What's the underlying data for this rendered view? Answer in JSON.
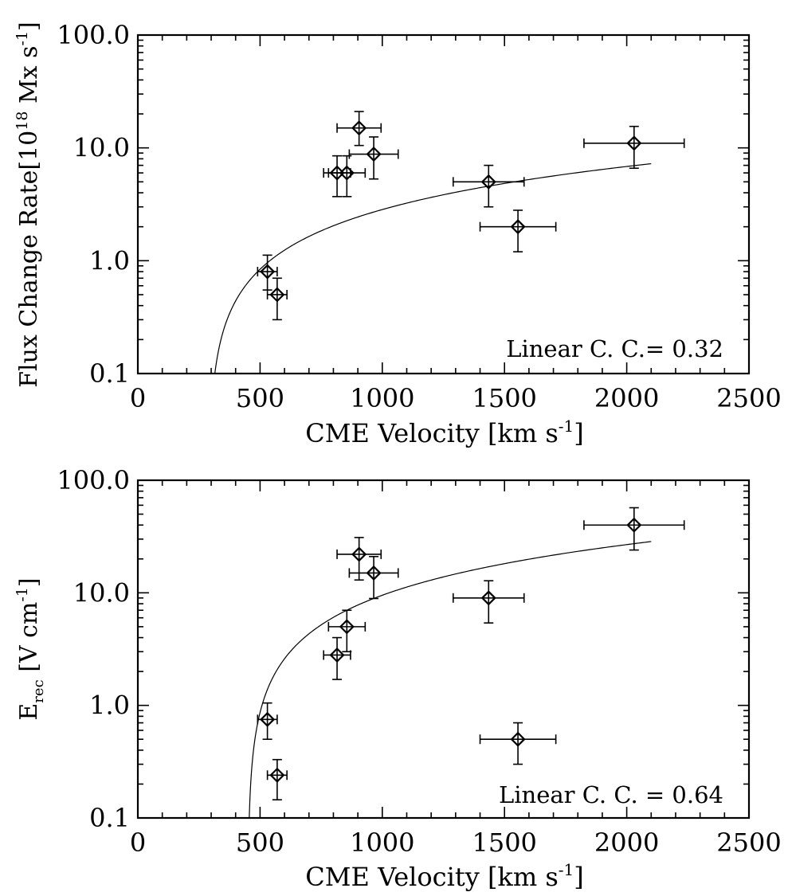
{
  "chart_data": [
    {
      "type": "scatter",
      "xlabel": "CME Velocity [km s",
      "xlabel_sup": "-1",
      "xlabel_end": "]",
      "ylabel": "Flux Change Rate[10",
      "ylabel_sup": "18",
      "ylabel_mid": " Mx s",
      "ylabel_sup2": "-1",
      "ylabel_end": "]",
      "xlim": [
        0,
        2500
      ],
      "ylim": [
        0.1,
        100
      ],
      "yscale": "log",
      "xticks": [
        "0",
        "500",
        "1000",
        "1500",
        "2000",
        "2500"
      ],
      "yticks": [
        "0.1",
        "1.0",
        "10.0",
        "100.0"
      ],
      "annotation": "Linear C. C.= 0.32",
      "points": [
        {
          "x": 530,
          "y": 0.8,
          "xerr": 40,
          "ylo": 0.55,
          "yhi": 1.12
        },
        {
          "x": 570,
          "y": 0.5,
          "xerr": 40,
          "ylo": 0.3,
          "yhi": 0.7
        },
        {
          "x": 815,
          "y": 6.0,
          "xerr": 55,
          "ylo": 3.7,
          "yhi": 8.5
        },
        {
          "x": 855,
          "y": 6.0,
          "xerr": 75,
          "ylo": 3.7,
          "yhi": 8.5
        },
        {
          "x": 905,
          "y": 15.0,
          "xerr": 90,
          "ylo": 10.5,
          "yhi": 21.0
        },
        {
          "x": 965,
          "y": 8.8,
          "xerr": 100,
          "ylo": 5.3,
          "yhi": 12.5
        },
        {
          "x": 1435,
          "y": 5.0,
          "xerr": 145,
          "ylo": 3.0,
          "yhi": 7.0
        },
        {
          "x": 1555,
          "y": 2.0,
          "xerr": 155,
          "ylo": 1.2,
          "yhi": 2.8
        },
        {
          "x": 2030,
          "y": 11.0,
          "xerr": 205,
          "ylo": 6.6,
          "yhi": 15.5
        }
      ],
      "fit": {
        "x_start": 295,
        "x_end": 2100,
        "x0": 290,
        "k": 0.004
      }
    },
    {
      "type": "scatter",
      "xlabel": "CME Velocity [km s",
      "xlabel_sup": "-1",
      "xlabel_end": "]",
      "ylabel": "E",
      "ylabel_sub": "rec",
      "ylabel_mid": " [V cm",
      "ylabel_sup2": "-1",
      "ylabel_end": "]",
      "xlim": [
        0,
        2500
      ],
      "ylim": [
        0.1,
        100
      ],
      "yscale": "log",
      "xticks": [
        "0",
        "500",
        "1000",
        "1500",
        "2000",
        "2500"
      ],
      "yticks": [
        "0.1",
        "1.0",
        "10.0",
        "100.0"
      ],
      "annotation": "Linear C. C. = 0.64",
      "points": [
        {
          "x": 530,
          "y": 0.75,
          "xerr": 40,
          "ylo": 0.5,
          "yhi": 1.05
        },
        {
          "x": 570,
          "y": 0.24,
          "xerr": 40,
          "ylo": 0.145,
          "yhi": 0.33
        },
        {
          "x": 815,
          "y": 2.8,
          "xerr": 55,
          "ylo": 1.7,
          "yhi": 4.0
        },
        {
          "x": 855,
          "y": 5.0,
          "xerr": 75,
          "ylo": 3.0,
          "yhi": 7.0
        },
        {
          "x": 905,
          "y": 22.0,
          "xerr": 90,
          "ylo": 13.0,
          "yhi": 31.0
        },
        {
          "x": 965,
          "y": 15.0,
          "xerr": 100,
          "ylo": 8.9,
          "yhi": 21.0
        },
        {
          "x": 1435,
          "y": 9.0,
          "xerr": 145,
          "ylo": 5.4,
          "yhi": 12.8
        },
        {
          "x": 1555,
          "y": 0.5,
          "xerr": 155,
          "ylo": 0.3,
          "yhi": 0.7
        },
        {
          "x": 2030,
          "y": 40.0,
          "xerr": 205,
          "ylo": 24.0,
          "yhi": 57.0
        }
      ],
      "fit": {
        "x_start": 455,
        "x_end": 2100,
        "x0": 450,
        "k": 0.0173
      }
    }
  ]
}
